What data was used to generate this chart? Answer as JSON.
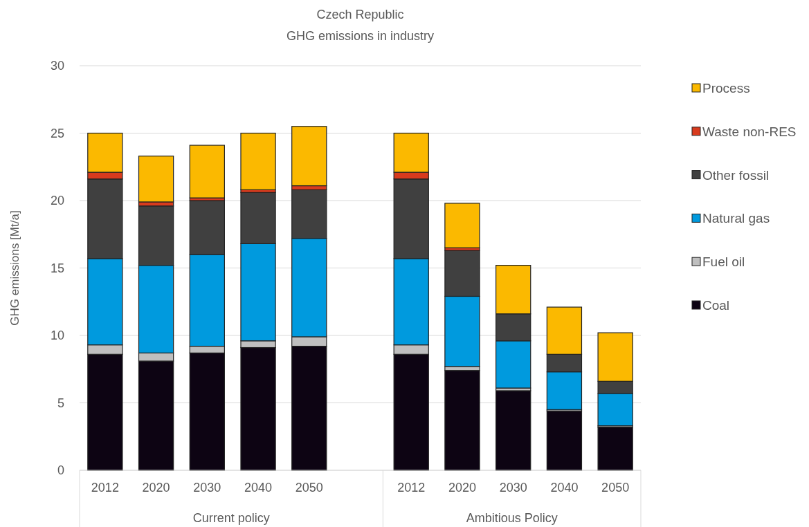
{
  "chart_data": {
    "type": "bar",
    "title": "Czech Republic",
    "subtitle": "GHG emissions in industry",
    "ylabel": "GHG emissions [Mt/a]",
    "categories": [
      "2012",
      "2020",
      "2030",
      "2040",
      "2050",
      null,
      "2012",
      "2020",
      "2030",
      "2040",
      "2050"
    ],
    "annotations": [
      "Current policy",
      "Ambitious Policy"
    ],
    "stacked": true,
    "ylim": [
      0,
      30
    ],
    "yticks": [
      0,
      5,
      10,
      15,
      20,
      25,
      30
    ],
    "grid": "y",
    "legend": "right",
    "series": [
      {
        "name": "Coal",
        "color": "#0d0413",
        "values": [
          8.6,
          8.1,
          8.7,
          9.1,
          9.2,
          null,
          8.6,
          7.4,
          5.9,
          4.4,
          3.2
        ]
      },
      {
        "name": "Fuel oil",
        "color": "#bfbfbf",
        "values": [
          0.7,
          0.6,
          0.5,
          0.5,
          0.7,
          null,
          0.7,
          0.3,
          0.2,
          0.1,
          0.1
        ]
      },
      {
        "name": "Natural gas",
        "color": "#009ade",
        "values": [
          6.4,
          6.5,
          6.8,
          7.2,
          7.3,
          null,
          6.4,
          5.2,
          3.5,
          2.8,
          2.4
        ]
      },
      {
        "name": "Other fossil",
        "color": "#404040",
        "values": [
          5.9,
          4.4,
          4.0,
          3.8,
          3.6,
          null,
          5.9,
          3.4,
          2.0,
          1.3,
          0.9
        ]
      },
      {
        "name": "Waste non-RES",
        "color": "#d83b1e",
        "values": [
          0.5,
          0.3,
          0.2,
          0.2,
          0.3,
          null,
          0.5,
          0.2,
          0,
          0,
          0
        ]
      },
      {
        "name": "Process",
        "color": "#fbb900",
        "values": [
          2.9,
          3.4,
          3.9,
          4.2,
          4.4,
          null,
          2.9,
          3.3,
          3.6,
          3.5,
          3.6
        ]
      }
    ]
  }
}
